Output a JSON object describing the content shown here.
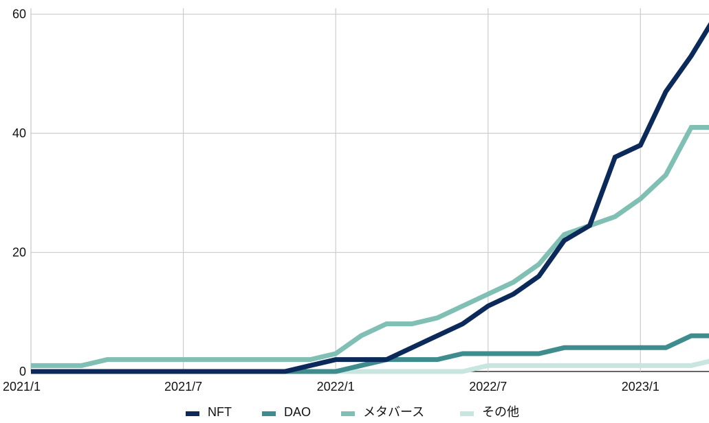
{
  "chart_data": {
    "type": "line",
    "title": "",
    "xlabel": "",
    "ylabel": "",
    "x_dates": [
      "2021-01",
      "2021-02",
      "2021-03",
      "2021-04",
      "2021-05",
      "2021-06",
      "2021-07",
      "2021-08",
      "2021-09",
      "2021-10",
      "2021-11",
      "2021-12",
      "2022-01",
      "2022-02",
      "2022-03",
      "2022-04",
      "2022-05",
      "2022-06",
      "2022-07",
      "2022-08",
      "2022-09",
      "2022-10",
      "2022-11",
      "2022-12",
      "2023-01",
      "2023-02",
      "2023-03",
      "2023-04"
    ],
    "x_tick_labels": [
      "2021/1",
      "2021/7",
      "2022/1",
      "2022/7",
      "2023/1"
    ],
    "x_tick_dates": [
      "2021-01",
      "2021-07",
      "2022-01",
      "2022-07",
      "2023-01"
    ],
    "y_ticks": [
      0,
      20,
      40,
      60
    ],
    "ylim": [
      0,
      61
    ],
    "grid": true,
    "legend_position": "bottom",
    "series": [
      {
        "name": "NFT",
        "color": "#0b2a59",
        "values": [
          0,
          0,
          0,
          0,
          0,
          0,
          0,
          0,
          0,
          0,
          0,
          1,
          2,
          2,
          2,
          4,
          6,
          8,
          11,
          13,
          16,
          22,
          24.5,
          36,
          38,
          47,
          53,
          60
        ]
      },
      {
        "name": "DAO",
        "color": "#3f8c8f",
        "values": [
          0,
          0,
          0,
          0,
          0,
          0,
          0,
          0,
          0,
          0,
          0,
          0,
          0,
          1,
          2,
          2,
          2,
          3,
          3,
          3,
          3,
          4,
          4,
          4,
          4,
          4,
          6,
          6
        ]
      },
      {
        "name": "メタバース",
        "color": "#7fbfb4",
        "values": [
          1,
          1,
          1,
          2,
          2,
          2,
          2,
          2,
          2,
          2,
          2,
          2,
          3,
          6,
          8,
          8,
          9,
          11,
          13,
          15,
          18,
          23,
          24.5,
          26,
          29,
          33,
          41,
          41
        ]
      },
      {
        "name": "その他",
        "color": "#c8e5df",
        "values": [
          0,
          0,
          0,
          0,
          0,
          0,
          0,
          0,
          0,
          0,
          0,
          0,
          0,
          0,
          0,
          0,
          0,
          0,
          1,
          1,
          1,
          1,
          1,
          1,
          1,
          1,
          1,
          2
        ]
      }
    ]
  }
}
